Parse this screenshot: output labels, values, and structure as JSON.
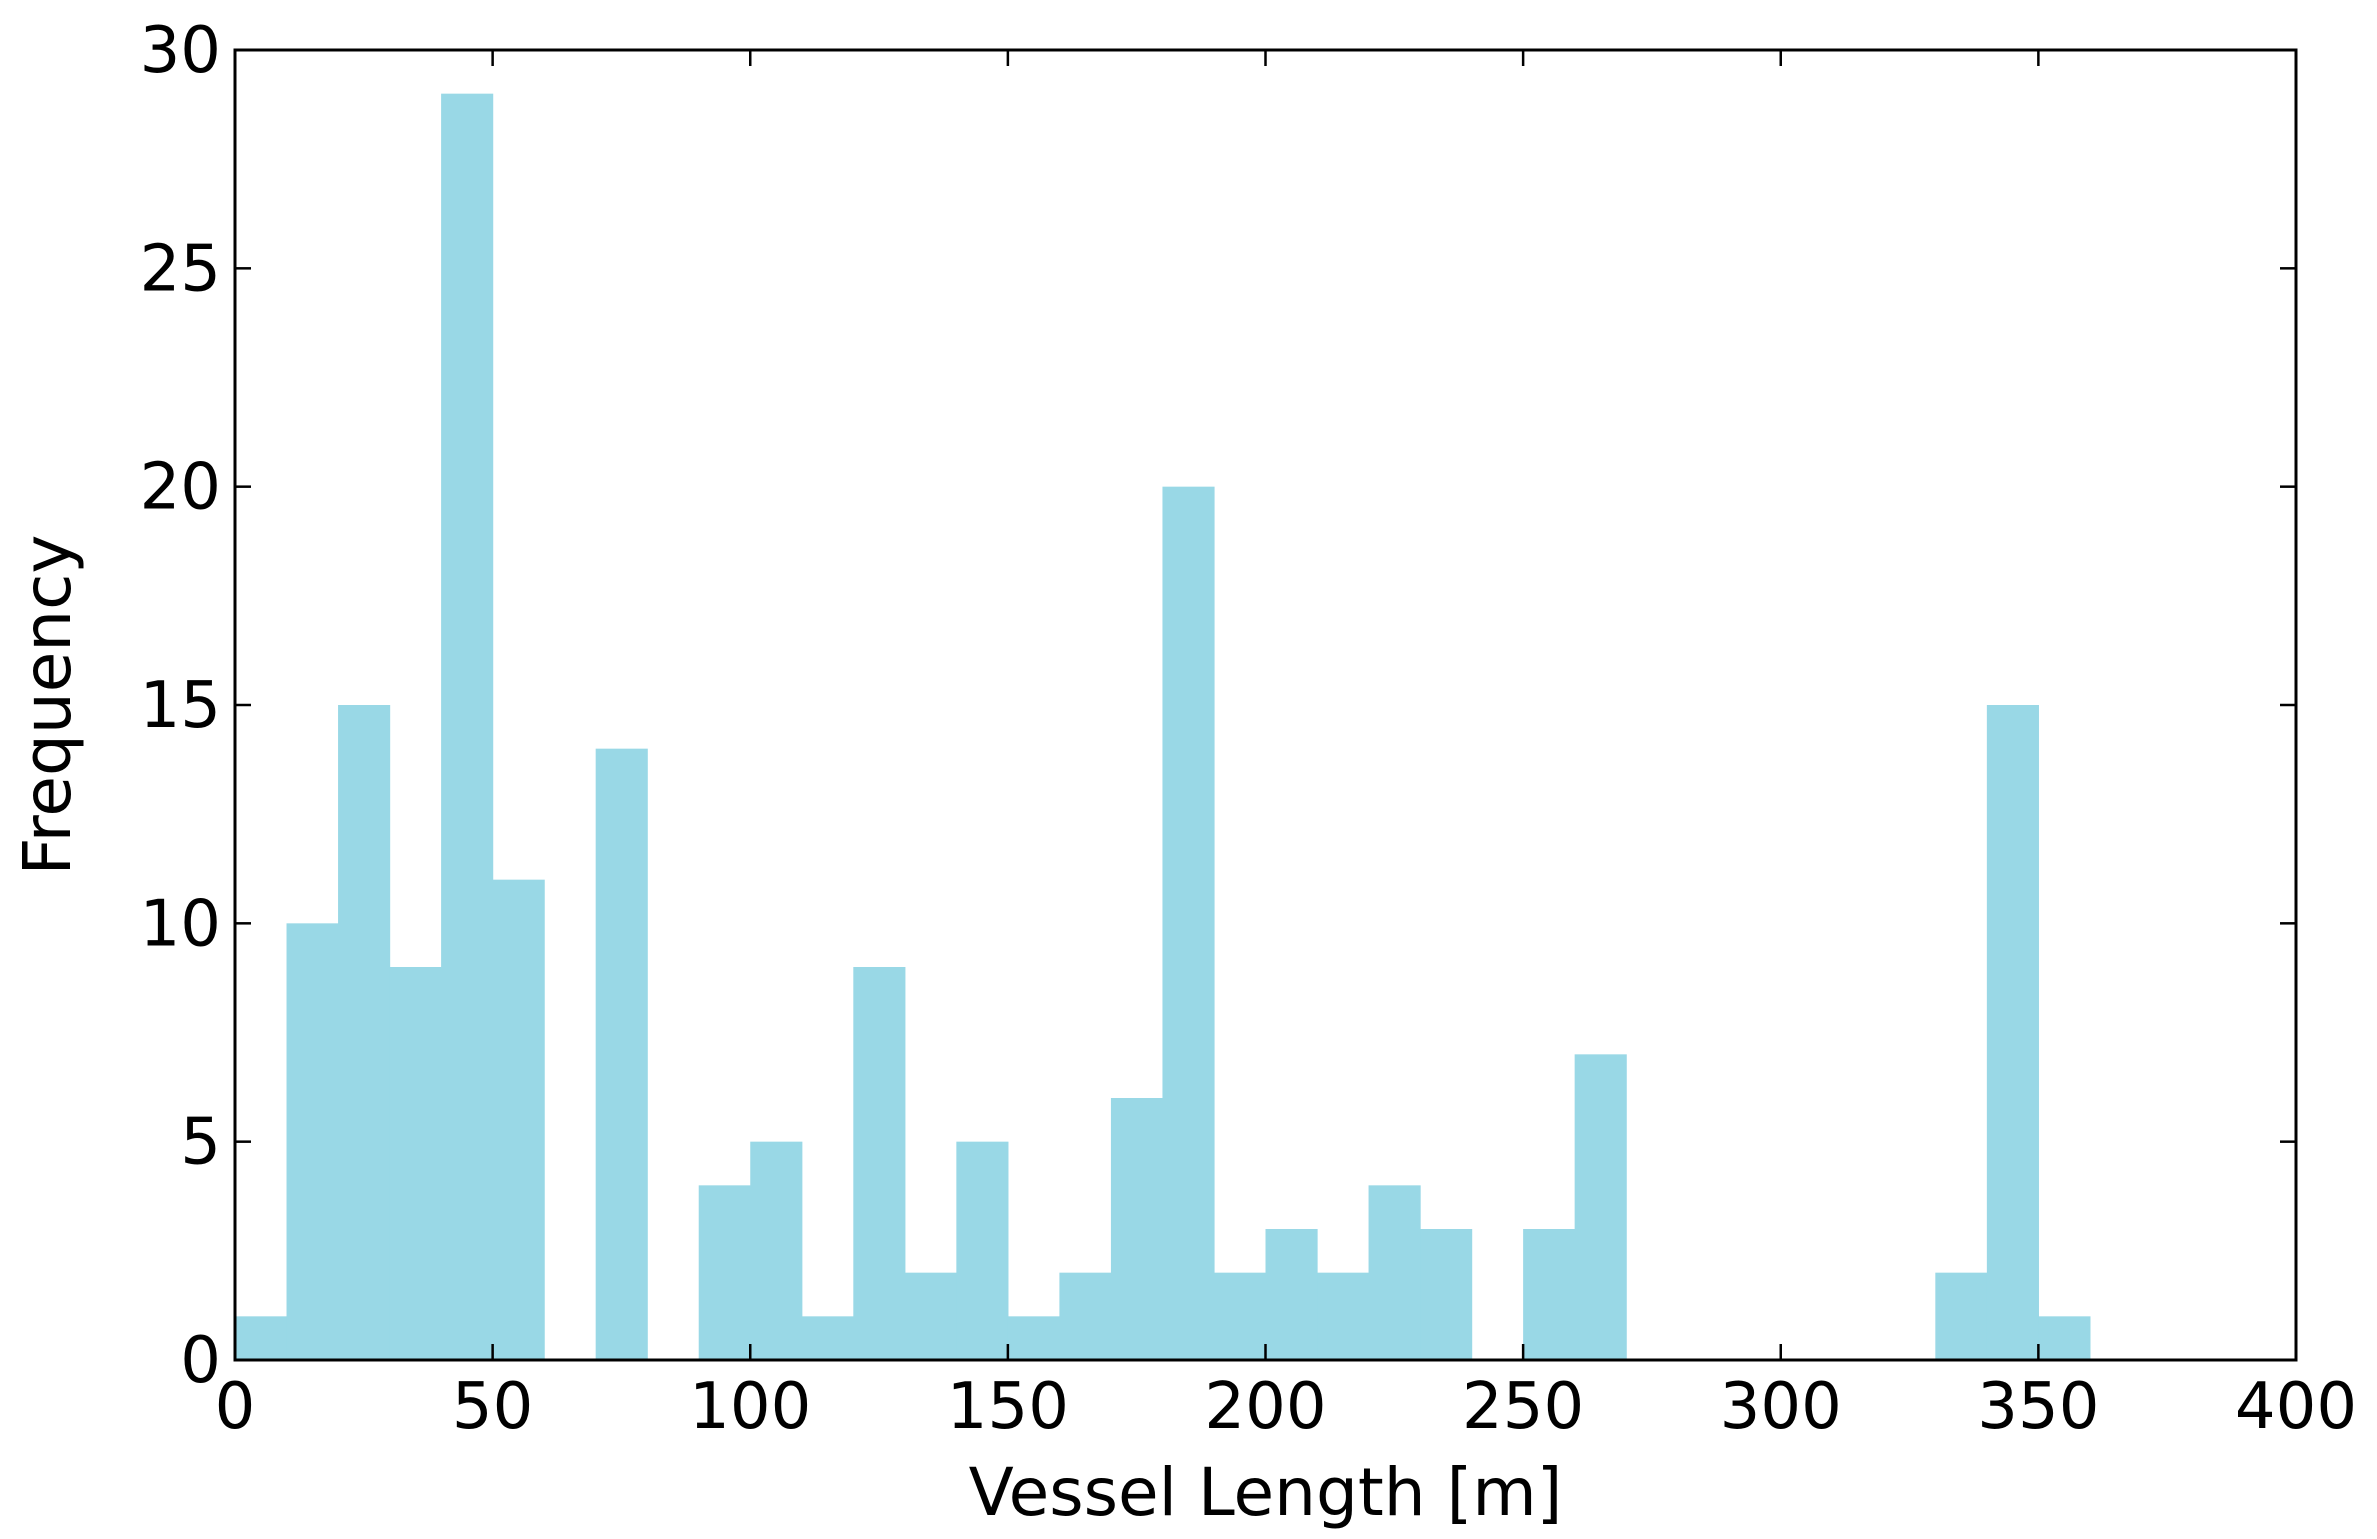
{
  "chart_data": {
    "type": "bar",
    "title": "",
    "xlabel": "Vessel Length [m]",
    "ylabel": "Frequency",
    "xlim": [
      0,
      400
    ],
    "ylim": [
      0,
      30
    ],
    "xticks": [
      "0",
      "50",
      "100",
      "150",
      "200",
      "250",
      "300",
      "350",
      "400"
    ],
    "yticks": [
      "0",
      "5",
      "10",
      "15",
      "20",
      "25",
      "30"
    ],
    "grid": false,
    "legend": "none",
    "bar_color": "#99d8e6",
    "bin_width": 10,
    "bins": [
      {
        "x0": 0,
        "value": 1
      },
      {
        "x0": 10,
        "value": 10
      },
      {
        "x0": 20,
        "value": 15
      },
      {
        "x0": 30,
        "value": 9
      },
      {
        "x0": 40,
        "value": 29
      },
      {
        "x0": 50,
        "value": 11
      },
      {
        "x0": 60,
        "value": 0
      },
      {
        "x0": 70,
        "value": 14
      },
      {
        "x0": 80,
        "value": 0
      },
      {
        "x0": 90,
        "value": 4
      },
      {
        "x0": 100,
        "value": 5
      },
      {
        "x0": 110,
        "value": 1
      },
      {
        "x0": 120,
        "value": 9
      },
      {
        "x0": 130,
        "value": 2
      },
      {
        "x0": 140,
        "value": 5
      },
      {
        "x0": 150,
        "value": 1
      },
      {
        "x0": 160,
        "value": 2
      },
      {
        "x0": 170,
        "value": 6
      },
      {
        "x0": 180,
        "value": 20
      },
      {
        "x0": 190,
        "value": 2
      },
      {
        "x0": 200,
        "value": 3
      },
      {
        "x0": 210,
        "value": 2
      },
      {
        "x0": 220,
        "value": 4
      },
      {
        "x0": 230,
        "value": 3
      },
      {
        "x0": 240,
        "value": 0
      },
      {
        "x0": 250,
        "value": 3
      },
      {
        "x0": 260,
        "value": 7
      },
      {
        "x0": 270,
        "value": 0
      },
      {
        "x0": 280,
        "value": 0
      },
      {
        "x0": 290,
        "value": 0
      },
      {
        "x0": 300,
        "value": 0
      },
      {
        "x0": 310,
        "value": 0
      },
      {
        "x0": 320,
        "value": 0
      },
      {
        "x0": 330,
        "value": 2
      },
      {
        "x0": 340,
        "value": 15
      },
      {
        "x0": 350,
        "value": 1
      }
    ]
  }
}
